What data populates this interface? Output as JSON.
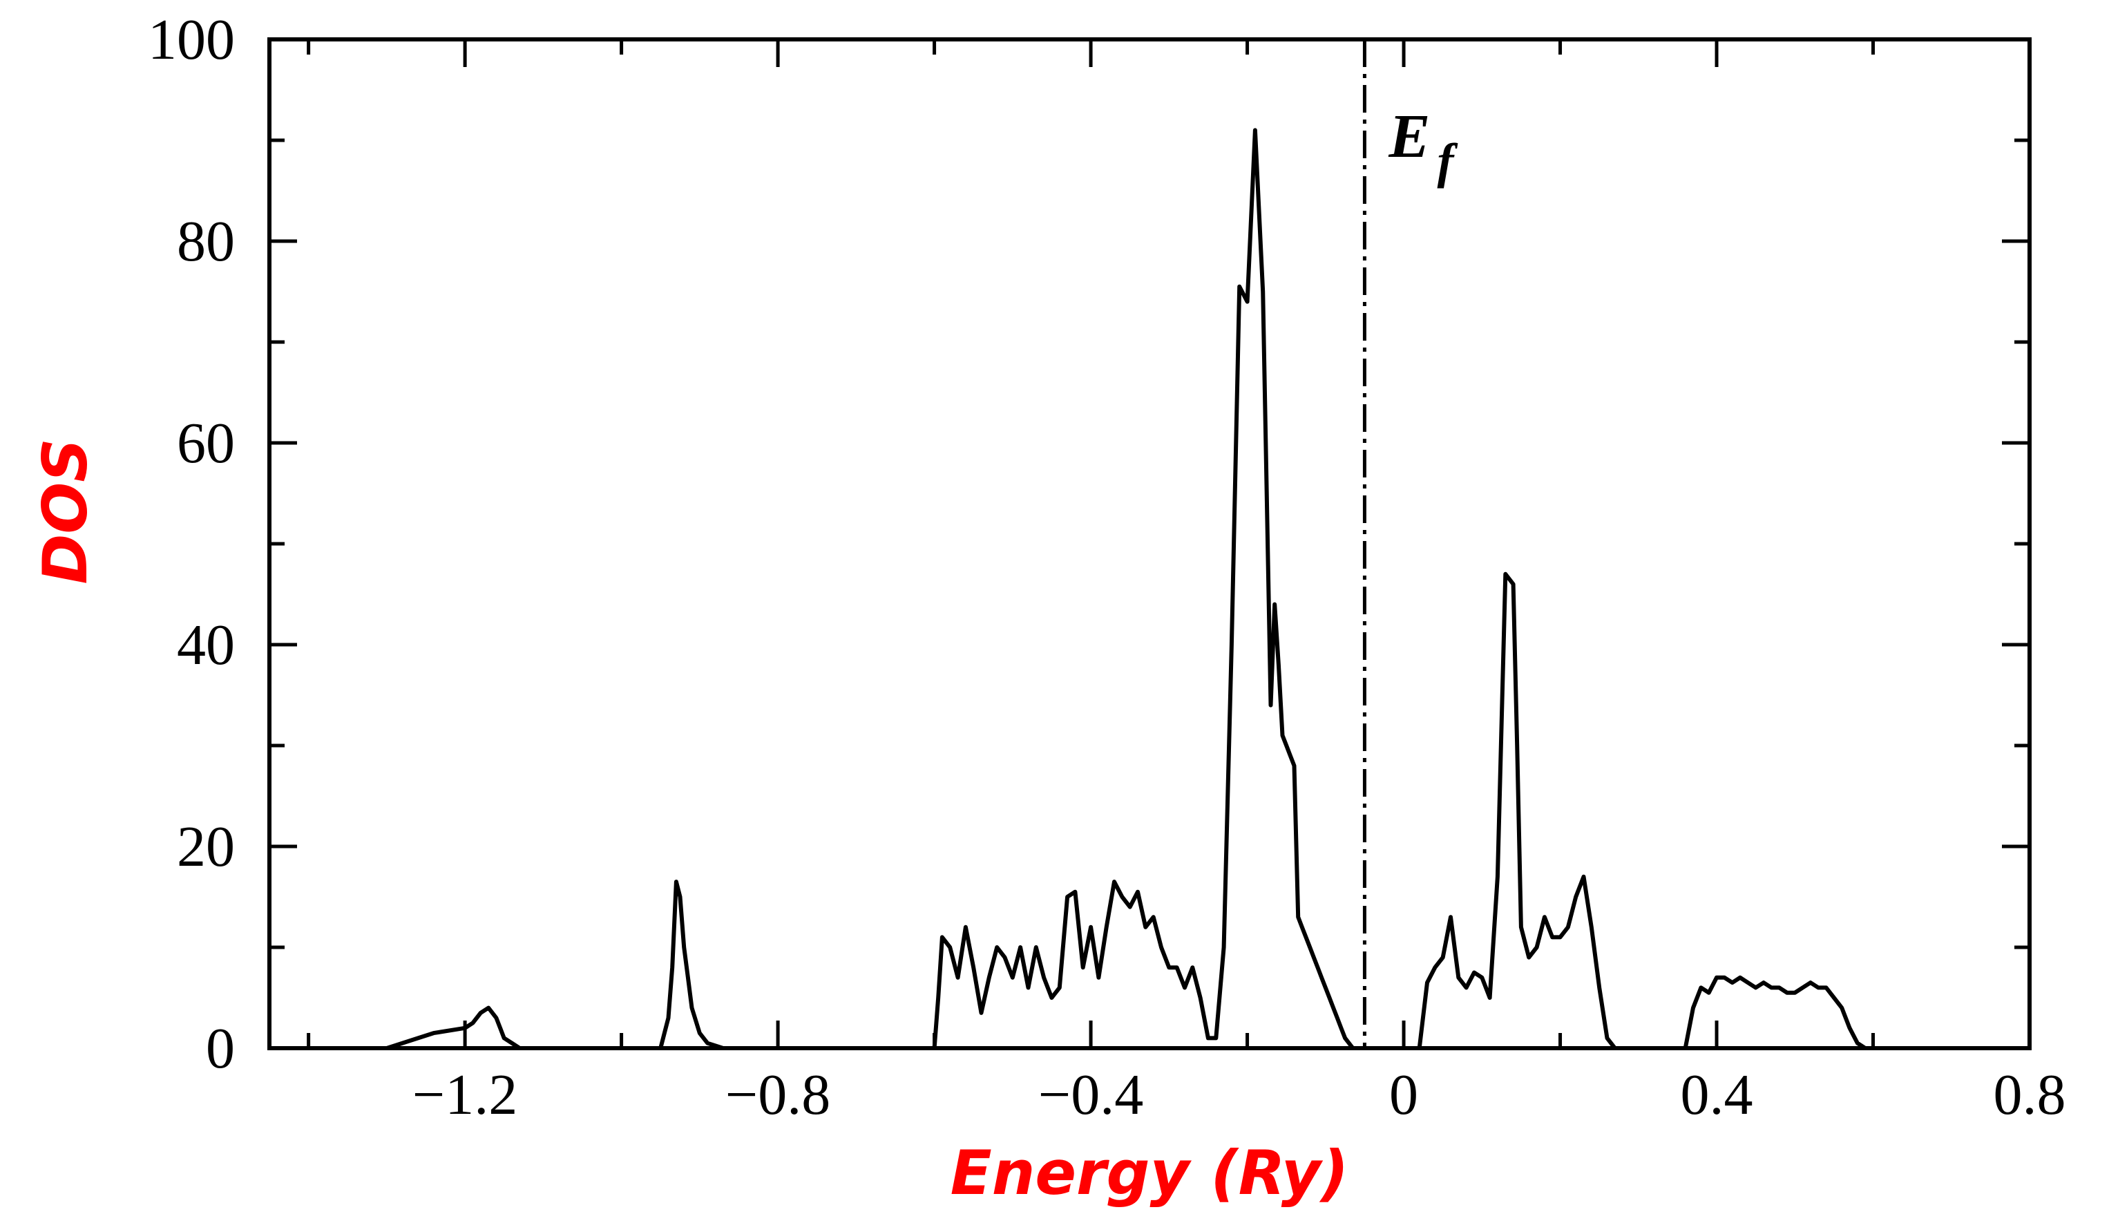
{
  "chart_data": {
    "type": "line",
    "title": "",
    "xlabel": "Energy  (Ry)",
    "ylabel": "DOS",
    "xlim": [
      -1.45,
      0.8
    ],
    "ylim": [
      0,
      100
    ],
    "x_ticks": [
      -1.2,
      -0.8,
      -0.4,
      0,
      0.4,
      0.8
    ],
    "x_tick_labels": [
      "−1.2",
      "−0.8",
      "−0.4",
      "0",
      "0.4",
      "0.8"
    ],
    "y_ticks": [
      0,
      20,
      40,
      60,
      80,
      100
    ],
    "y_tick_labels": [
      "0",
      "20",
      "40",
      "60",
      "80",
      "100"
    ],
    "grid": false,
    "annotations": [
      {
        "text": "E",
        "subscript": "f",
        "type": "vertical-dash-dot-line",
        "x": -0.05
      }
    ],
    "series": [
      {
        "color": "#000000",
        "x": [
          -1.45,
          -1.3,
          -1.26,
          -1.24,
          -1.2,
          -1.19,
          -1.18,
          -1.17,
          -1.16,
          -1.155,
          -1.15,
          -1.14,
          -1.13,
          -1.12,
          -1.45,
          -0.95,
          -0.94,
          -0.935,
          -0.93,
          -0.925,
          -0.92,
          -0.915,
          -0.91,
          -0.9,
          -0.89,
          -0.87,
          -0.85,
          -0.6,
          -0.595,
          -0.59,
          -0.58,
          -0.57,
          -0.56,
          -0.55,
          -0.54,
          -0.53,
          -0.52,
          -0.51,
          -0.5,
          -0.49,
          -0.48,
          -0.47,
          -0.46,
          -0.45,
          -0.44,
          -0.43,
          -0.42,
          -0.41,
          -0.4,
          -0.39,
          -0.38,
          -0.37,
          -0.36,
          -0.35,
          -0.34,
          -0.33,
          -0.32,
          -0.31,
          -0.3,
          -0.29,
          -0.28,
          -0.27,
          -0.26,
          -0.25,
          -0.24,
          -0.23,
          -0.22,
          -0.21,
          -0.2,
          -0.19,
          -0.18,
          -0.17,
          -0.165,
          -0.16,
          -0.155,
          -0.15,
          -0.145,
          -0.14,
          -0.135,
          -0.13,
          -0.125,
          -0.12,
          -0.115,
          -0.11,
          -0.105,
          -0.1,
          -0.095,
          -0.09,
          -0.085,
          -0.08,
          -0.075,
          -0.07,
          -0.065,
          -0.06,
          -0.058,
          0.02,
          0.03,
          0.04,
          0.05,
          0.06,
          0.07,
          0.08,
          0.09,
          0.1,
          0.11,
          0.12,
          0.13,
          0.14,
          0.145,
          0.15,
          0.16,
          0.17,
          0.18,
          0.19,
          0.2,
          0.21,
          0.22,
          0.23,
          0.24,
          0.25,
          0.26,
          0.27,
          0.28,
          0.36,
          0.37,
          0.38,
          0.39,
          0.4,
          0.41,
          0.42,
          0.43,
          0.44,
          0.45,
          0.46,
          0.47,
          0.48,
          0.49,
          0.5,
          0.51,
          0.52,
          0.53,
          0.54,
          0.55,
          0.56,
          0.57,
          0.58,
          0.59,
          0.6
        ],
        "y": [
          0,
          0,
          1,
          1.5,
          2,
          2.5,
          3.5,
          4,
          3,
          2,
          1,
          0.5,
          0,
          0,
          0,
          0,
          3,
          8,
          16.5,
          15,
          10,
          7,
          4,
          1.5,
          0.5,
          0,
          0,
          0,
          5,
          11,
          10,
          7,
          12,
          8,
          3.5,
          7,
          10,
          9,
          7,
          10,
          6,
          10,
          7,
          5,
          6,
          15,
          15.5,
          8,
          12,
          7,
          12,
          16.5,
          15,
          14,
          15.5,
          12,
          13,
          10,
          8,
          8,
          6,
          8,
          5,
          1,
          1,
          10,
          40,
          75.5,
          74,
          91,
          75,
          34,
          44,
          38,
          31,
          30,
          29,
          28,
          13,
          12,
          11,
          10,
          9,
          8,
          7,
          6,
          5,
          4,
          3,
          2,
          1,
          0.5,
          0,
          0,
          0,
          0,
          6.5,
          8,
          9,
          13,
          7,
          6,
          7.5,
          7,
          5,
          17,
          47,
          46,
          30,
          12,
          9,
          10,
          13,
          11,
          11,
          12,
          15,
          17,
          12,
          6,
          1,
          0,
          0,
          0,
          4,
          6,
          5.5,
          7,
          7,
          6.5,
          7,
          6.5,
          6,
          6.5,
          6,
          6,
          5.5,
          5.5,
          6,
          6.5,
          6,
          6,
          5,
          4,
          2,
          0.5,
          0,
          0
        ]
      }
    ]
  }
}
